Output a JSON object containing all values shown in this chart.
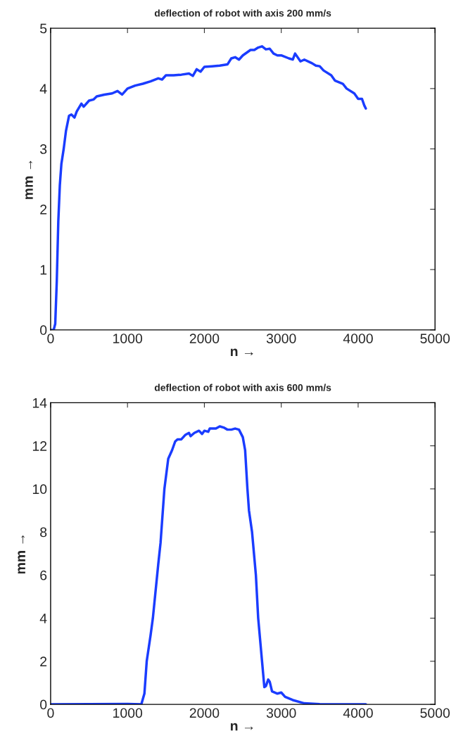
{
  "chart_data": [
    {
      "type": "line",
      "title": "deflection of robot with axis 200 mm/s",
      "xlabel": "n →",
      "ylabel": "mm →",
      "xlim": [
        0,
        5000
      ],
      "xticks": [
        0,
        1000,
        2000,
        3000,
        4000,
        5000
      ],
      "ylim": [
        0,
        5
      ],
      "yticks": [
        0,
        1,
        2,
        3,
        4,
        5
      ],
      "grid": false,
      "legend": false,
      "series": [
        {
          "color": "#1a3cff",
          "x": [
            0,
            40,
            60,
            80,
            100,
            120,
            140,
            170,
            200,
            240,
            270,
            310,
            340,
            400,
            430,
            500,
            560,
            600,
            700,
            800,
            870,
            930,
            1000,
            1100,
            1200,
            1300,
            1400,
            1450,
            1500,
            1600,
            1700,
            1800,
            1850,
            1900,
            1950,
            2000,
            2100,
            2200,
            2300,
            2350,
            2400,
            2450,
            2500,
            2600,
            2650,
            2700,
            2750,
            2800,
            2850,
            2900,
            2950,
            3000,
            3100,
            3150,
            3180,
            3250,
            3300,
            3400,
            3450,
            3500,
            3550,
            3650,
            3700,
            3800,
            3850,
            3950,
            4000,
            4050,
            4080,
            4100
          ],
          "values": [
            0,
            0,
            0.1,
            0.8,
            1.8,
            2.4,
            2.75,
            3.0,
            3.3,
            3.55,
            3.57,
            3.52,
            3.62,
            3.75,
            3.7,
            3.8,
            3.82,
            3.87,
            3.9,
            3.92,
            3.96,
            3.9,
            4.0,
            4.05,
            4.08,
            4.12,
            4.17,
            4.15,
            4.22,
            4.22,
            4.23,
            4.25,
            4.21,
            4.32,
            4.28,
            4.36,
            4.37,
            4.38,
            4.4,
            4.5,
            4.52,
            4.48,
            4.55,
            4.64,
            4.64,
            4.68,
            4.7,
            4.65,
            4.66,
            4.58,
            4.55,
            4.55,
            4.5,
            4.48,
            4.58,
            4.45,
            4.48,
            4.42,
            4.38,
            4.37,
            4.3,
            4.22,
            4.13,
            4.08,
            4.0,
            3.92,
            3.83,
            3.83,
            3.72,
            3.67
          ]
        }
      ]
    },
    {
      "type": "line",
      "title": "deflection of robot with axis 600 mm/s",
      "xlabel": "n →",
      "ylabel": "mm →",
      "xlim": [
        0,
        5000
      ],
      "xticks": [
        0,
        1000,
        2000,
        3000,
        4000,
        5000
      ],
      "ylim": [
        0,
        14
      ],
      "yticks": [
        0,
        2,
        4,
        6,
        8,
        10,
        12,
        14
      ],
      "grid": false,
      "legend": false,
      "series": [
        {
          "color": "#1a3cff",
          "x": [
            0,
            1000,
            1180,
            1220,
            1250,
            1300,
            1330,
            1400,
            1430,
            1480,
            1530,
            1580,
            1620,
            1650,
            1700,
            1750,
            1800,
            1820,
            1870,
            1930,
            1970,
            2000,
            2050,
            2070,
            2150,
            2200,
            2250,
            2300,
            2350,
            2400,
            2450,
            2500,
            2530,
            2560,
            2580,
            2620,
            2670,
            2700,
            2750,
            2780,
            2800,
            2830,
            2850,
            2880,
            2950,
            3000,
            3050,
            3150,
            3300,
            3500,
            4100
          ],
          "values": [
            0,
            0.02,
            0,
            0.5,
            2.0,
            3.2,
            4,
            6.5,
            7.5,
            10,
            11.4,
            11.8,
            12.2,
            12.3,
            12.3,
            12.5,
            12.6,
            12.45,
            12.6,
            12.7,
            12.55,
            12.7,
            12.65,
            12.8,
            12.8,
            12.9,
            12.85,
            12.75,
            12.75,
            12.8,
            12.75,
            12.4,
            11.8,
            10.0,
            9,
            8.0,
            6,
            4,
            2.0,
            0.8,
            0.85,
            1.15,
            1.05,
            0.6,
            0.5,
            0.55,
            0.35,
            0.2,
            0.05,
            0.01,
            0
          ]
        }
      ]
    }
  ]
}
